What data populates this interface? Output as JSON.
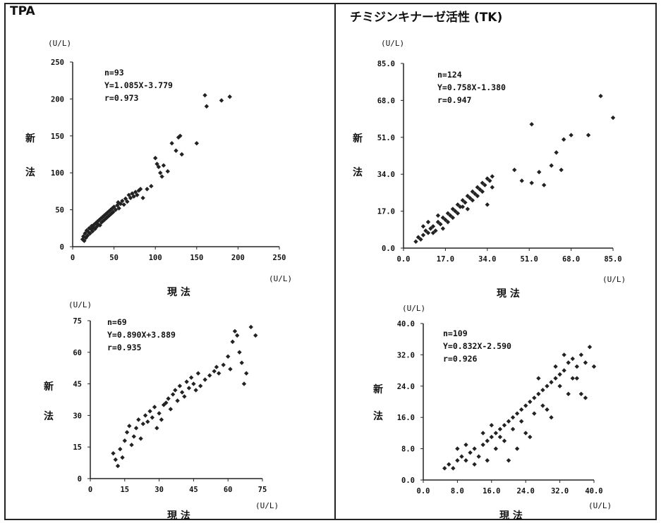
{
  "panels": {
    "left_title": "TPA",
    "right_title": "チミジンキナーゼ活性 (TK)"
  },
  "chart_data": [
    {
      "type": "scatter",
      "id": "tpa_top",
      "unit_y": "(U/L)",
      "unit_x": "(U/L)",
      "xlabel": "現 法",
      "ylabel": [
        "新",
        "法"
      ],
      "xlim": [
        0,
        250
      ],
      "ylim": [
        0,
        250
      ],
      "xticks": [
        "0",
        "50",
        "100",
        "150",
        "200",
        "250"
      ],
      "yticks": [
        "0",
        "50",
        "100",
        "150",
        "200",
        "250"
      ],
      "stats": [
        "n=93",
        "Y=1.085X-3.779",
        "r=0.973"
      ],
      "points": [
        [
          12,
          10
        ],
        [
          13,
          14
        ],
        [
          14,
          8
        ],
        [
          15,
          18
        ],
        [
          16,
          12
        ],
        [
          17,
          22
        ],
        [
          18,
          15
        ],
        [
          19,
          20
        ],
        [
          20,
          25
        ],
        [
          21,
          18
        ],
        [
          22,
          24
        ],
        [
          23,
          28
        ],
        [
          24,
          21
        ],
        [
          25,
          26
        ],
        [
          26,
          30
        ],
        [
          27,
          24
        ],
        [
          28,
          32
        ],
        [
          29,
          27
        ],
        [
          30,
          34
        ],
        [
          31,
          30
        ],
        [
          32,
          36
        ],
        [
          33,
          29
        ],
        [
          34,
          38
        ],
        [
          35,
          33
        ],
        [
          36,
          40
        ],
        [
          37,
          35
        ],
        [
          38,
          42
        ],
        [
          39,
          37
        ],
        [
          40,
          44
        ],
        [
          41,
          39
        ],
        [
          42,
          46
        ],
        [
          43,
          41
        ],
        [
          44,
          48
        ],
        [
          45,
          43
        ],
        [
          46,
          50
        ],
        [
          47,
          45
        ],
        [
          48,
          52
        ],
        [
          49,
          47
        ],
        [
          50,
          54
        ],
        [
          52,
          50
        ],
        [
          54,
          56
        ],
        [
          55,
          60
        ],
        [
          56,
          52
        ],
        [
          58,
          58
        ],
        [
          60,
          62
        ],
        [
          62,
          57
        ],
        [
          64,
          65
        ],
        [
          66,
          61
        ],
        [
          68,
          70
        ],
        [
          70,
          66
        ],
        [
          72,
          72
        ],
        [
          74,
          68
        ],
        [
          76,
          74
        ],
        [
          78,
          70
        ],
        [
          80,
          76
        ],
        [
          82,
          78
        ],
        [
          85,
          66
        ],
        [
          90,
          78
        ],
        [
          95,
          82
        ],
        [
          100,
          120
        ],
        [
          102,
          112
        ],
        [
          104,
          108
        ],
        [
          106,
          100
        ],
        [
          108,
          95
        ],
        [
          110,
          110
        ],
        [
          115,
          102
        ],
        [
          120,
          140
        ],
        [
          125,
          130
        ],
        [
          128,
          148
        ],
        [
          130,
          150
        ],
        [
          132,
          125
        ],
        [
          150,
          140
        ],
        [
          160,
          205
        ],
        [
          162,
          190
        ],
        [
          180,
          198
        ],
        [
          190,
          203
        ]
      ]
    },
    {
      "type": "scatter",
      "id": "tk_top",
      "unit_y": "(U/L)",
      "unit_x": "(U/L)",
      "xlabel": "現 法",
      "ylabel": [
        "新",
        "法"
      ],
      "xlim": [
        0,
        85
      ],
      "ylim": [
        0,
        85
      ],
      "xticks": [
        "0.0",
        "17.0",
        "34.0",
        "51.0",
        "68.0",
        "85.0"
      ],
      "yticks": [
        "0.0",
        "17.0",
        "34.0",
        "51.0",
        "68.0",
        "85.0"
      ],
      "stats": [
        "n=124",
        "Y=0.758X-1.380",
        "r=0.947"
      ],
      "points": [
        [
          5,
          3
        ],
        [
          6,
          5
        ],
        [
          7,
          4
        ],
        [
          8,
          6
        ],
        [
          9,
          8
        ],
        [
          10,
          7
        ],
        [
          11,
          9
        ],
        [
          12,
          10
        ],
        [
          13,
          8
        ],
        [
          14,
          12
        ],
        [
          15,
          11
        ],
        [
          16,
          14
        ],
        [
          17,
          13
        ],
        [
          18,
          16
        ],
        [
          19,
          15
        ],
        [
          20,
          18
        ],
        [
          21,
          17
        ],
        [
          22,
          20
        ],
        [
          23,
          19
        ],
        [
          24,
          22
        ],
        [
          25,
          21
        ],
        [
          26,
          24
        ],
        [
          27,
          23
        ],
        [
          28,
          26
        ],
        [
          29,
          25
        ],
        [
          30,
          28
        ],
        [
          31,
          27
        ],
        [
          32,
          30
        ],
        [
          33,
          29
        ],
        [
          34,
          32
        ],
        [
          35,
          31
        ],
        [
          36,
          28
        ],
        [
          8,
          10
        ],
        [
          10,
          12
        ],
        [
          12,
          7
        ],
        [
          14,
          15
        ],
        [
          16,
          9
        ],
        [
          18,
          12
        ],
        [
          20,
          14
        ],
        [
          22,
          16
        ],
        [
          24,
          19
        ],
        [
          26,
          18
        ],
        [
          28,
          22
        ],
        [
          30,
          24
        ],
        [
          32,
          26
        ],
        [
          34,
          20
        ],
        [
          36,
          33
        ],
        [
          45,
          36
        ],
        [
          48,
          31
        ],
        [
          52,
          30
        ],
        [
          55,
          35
        ],
        [
          57,
          29
        ],
        [
          60,
          38
        ],
        [
          62,
          44
        ],
        [
          65,
          50
        ],
        [
          68,
          52
        ],
        [
          75,
          52
        ],
        [
          80,
          70
        ],
        [
          85,
          60
        ],
        [
          52,
          57
        ],
        [
          64,
          36
        ]
      ]
    },
    {
      "type": "scatter",
      "id": "tpa_bottom",
      "unit_y": "(U/L)",
      "unit_x": "(U/L)",
      "xlabel": "現 法",
      "ylabel": [
        "新",
        "法"
      ],
      "xlim": [
        0,
        75
      ],
      "ylim": [
        0,
        75
      ],
      "xticks": [
        "0",
        "15",
        "30",
        "45",
        "60",
        "75"
      ],
      "yticks": [
        "0",
        "15",
        "30",
        "45",
        "60",
        "75"
      ],
      "stats": [
        "n=69",
        "Y=0.890X+3.889",
        "r=0.935"
      ],
      "points": [
        [
          10,
          12
        ],
        [
          11,
          9
        ],
        [
          12,
          6
        ],
        [
          13,
          14
        ],
        [
          14,
          10
        ],
        [
          15,
          18
        ],
        [
          16,
          22
        ],
        [
          17,
          25
        ],
        [
          18,
          16
        ],
        [
          19,
          20
        ],
        [
          20,
          24
        ],
        [
          21,
          28
        ],
        [
          22,
          19
        ],
        [
          23,
          26
        ],
        [
          24,
          30
        ],
        [
          25,
          27
        ],
        [
          26,
          32
        ],
        [
          27,
          29
        ],
        [
          28,
          34
        ],
        [
          29,
          24
        ],
        [
          30,
          31
        ],
        [
          31,
          28
        ],
        [
          32,
          35
        ],
        [
          33,
          36
        ],
        [
          34,
          38
        ],
        [
          35,
          33
        ],
        [
          36,
          40
        ],
        [
          37,
          42
        ],
        [
          38,
          37
        ],
        [
          39,
          44
        ],
        [
          40,
          41
        ],
        [
          41,
          39
        ],
        [
          42,
          46
        ],
        [
          43,
          43
        ],
        [
          44,
          48
        ],
        [
          45,
          45
        ],
        [
          46,
          42
        ],
        [
          47,
          50
        ],
        [
          48,
          44
        ],
        [
          50,
          47
        ],
        [
          52,
          49
        ],
        [
          54,
          51
        ],
        [
          55,
          53
        ],
        [
          56,
          50
        ],
        [
          58,
          54
        ],
        [
          60,
          58
        ],
        [
          61,
          52
        ],
        [
          62,
          65
        ],
        [
          63,
          70
        ],
        [
          64,
          68
        ],
        [
          65,
          60
        ],
        [
          66,
          55
        ],
        [
          67,
          45
        ],
        [
          68,
          50
        ],
        [
          70,
          72
        ],
        [
          72,
          68
        ]
      ]
    },
    {
      "type": "scatter",
      "id": "tk_bottom",
      "unit_y": "(U/L)",
      "unit_x": "(U/L)",
      "xlabel": "現 法",
      "ylabel": [
        "新",
        "法"
      ],
      "xlim": [
        0,
        40
      ],
      "ylim": [
        0,
        40
      ],
      "xticks": [
        "0.0",
        "8.0",
        "16.0",
        "24.0",
        "32.0",
        "40.0"
      ],
      "yticks": [
        "0.0",
        "8.0",
        "16.0",
        "24.0",
        "32.0",
        "40.0"
      ],
      "stats": [
        "n=109",
        "Y=0.832X-2.590",
        "r=0.926"
      ],
      "points": [
        [
          5,
          3
        ],
        [
          6,
          4
        ],
        [
          7,
          3
        ],
        [
          8,
          5
        ],
        [
          9,
          6
        ],
        [
          10,
          5
        ],
        [
          11,
          7
        ],
        [
          12,
          8
        ],
        [
          13,
          6
        ],
        [
          14,
          9
        ],
        [
          15,
          10
        ],
        [
          16,
          11
        ],
        [
          17,
          12
        ],
        [
          18,
          13
        ],
        [
          19,
          14
        ],
        [
          20,
          15
        ],
        [
          21,
          16
        ],
        [
          22,
          17
        ],
        [
          23,
          18
        ],
        [
          24,
          19
        ],
        [
          25,
          20
        ],
        [
          26,
          21
        ],
        [
          27,
          22
        ],
        [
          28,
          23
        ],
        [
          29,
          24
        ],
        [
          30,
          25
        ],
        [
          31,
          26
        ],
        [
          32,
          27
        ],
        [
          33,
          28
        ],
        [
          34,
          30
        ],
        [
          35,
          31
        ],
        [
          36,
          29
        ],
        [
          37,
          32
        ],
        [
          38,
          30
        ],
        [
          39,
          34
        ],
        [
          40,
          29
        ],
        [
          8,
          8
        ],
        [
          10,
          9
        ],
        [
          12,
          4
        ],
        [
          14,
          12
        ],
        [
          16,
          14
        ],
        [
          18,
          11
        ],
        [
          20,
          5
        ],
        [
          22,
          8
        ],
        [
          24,
          12
        ],
        [
          26,
          17
        ],
        [
          28,
          19
        ],
        [
          30,
          16
        ],
        [
          32,
          24
        ],
        [
          34,
          22
        ],
        [
          36,
          26
        ],
        [
          38,
          21
        ],
        [
          15,
          5
        ],
        [
          17,
          8
        ],
        [
          19,
          10
        ],
        [
          21,
          13
        ],
        [
          23,
          15
        ],
        [
          25,
          11
        ],
        [
          27,
          26
        ],
        [
          29,
          18
        ],
        [
          31,
          29
        ],
        [
          33,
          32
        ],
        [
          35,
          26
        ],
        [
          37,
          22
        ]
      ]
    }
  ]
}
